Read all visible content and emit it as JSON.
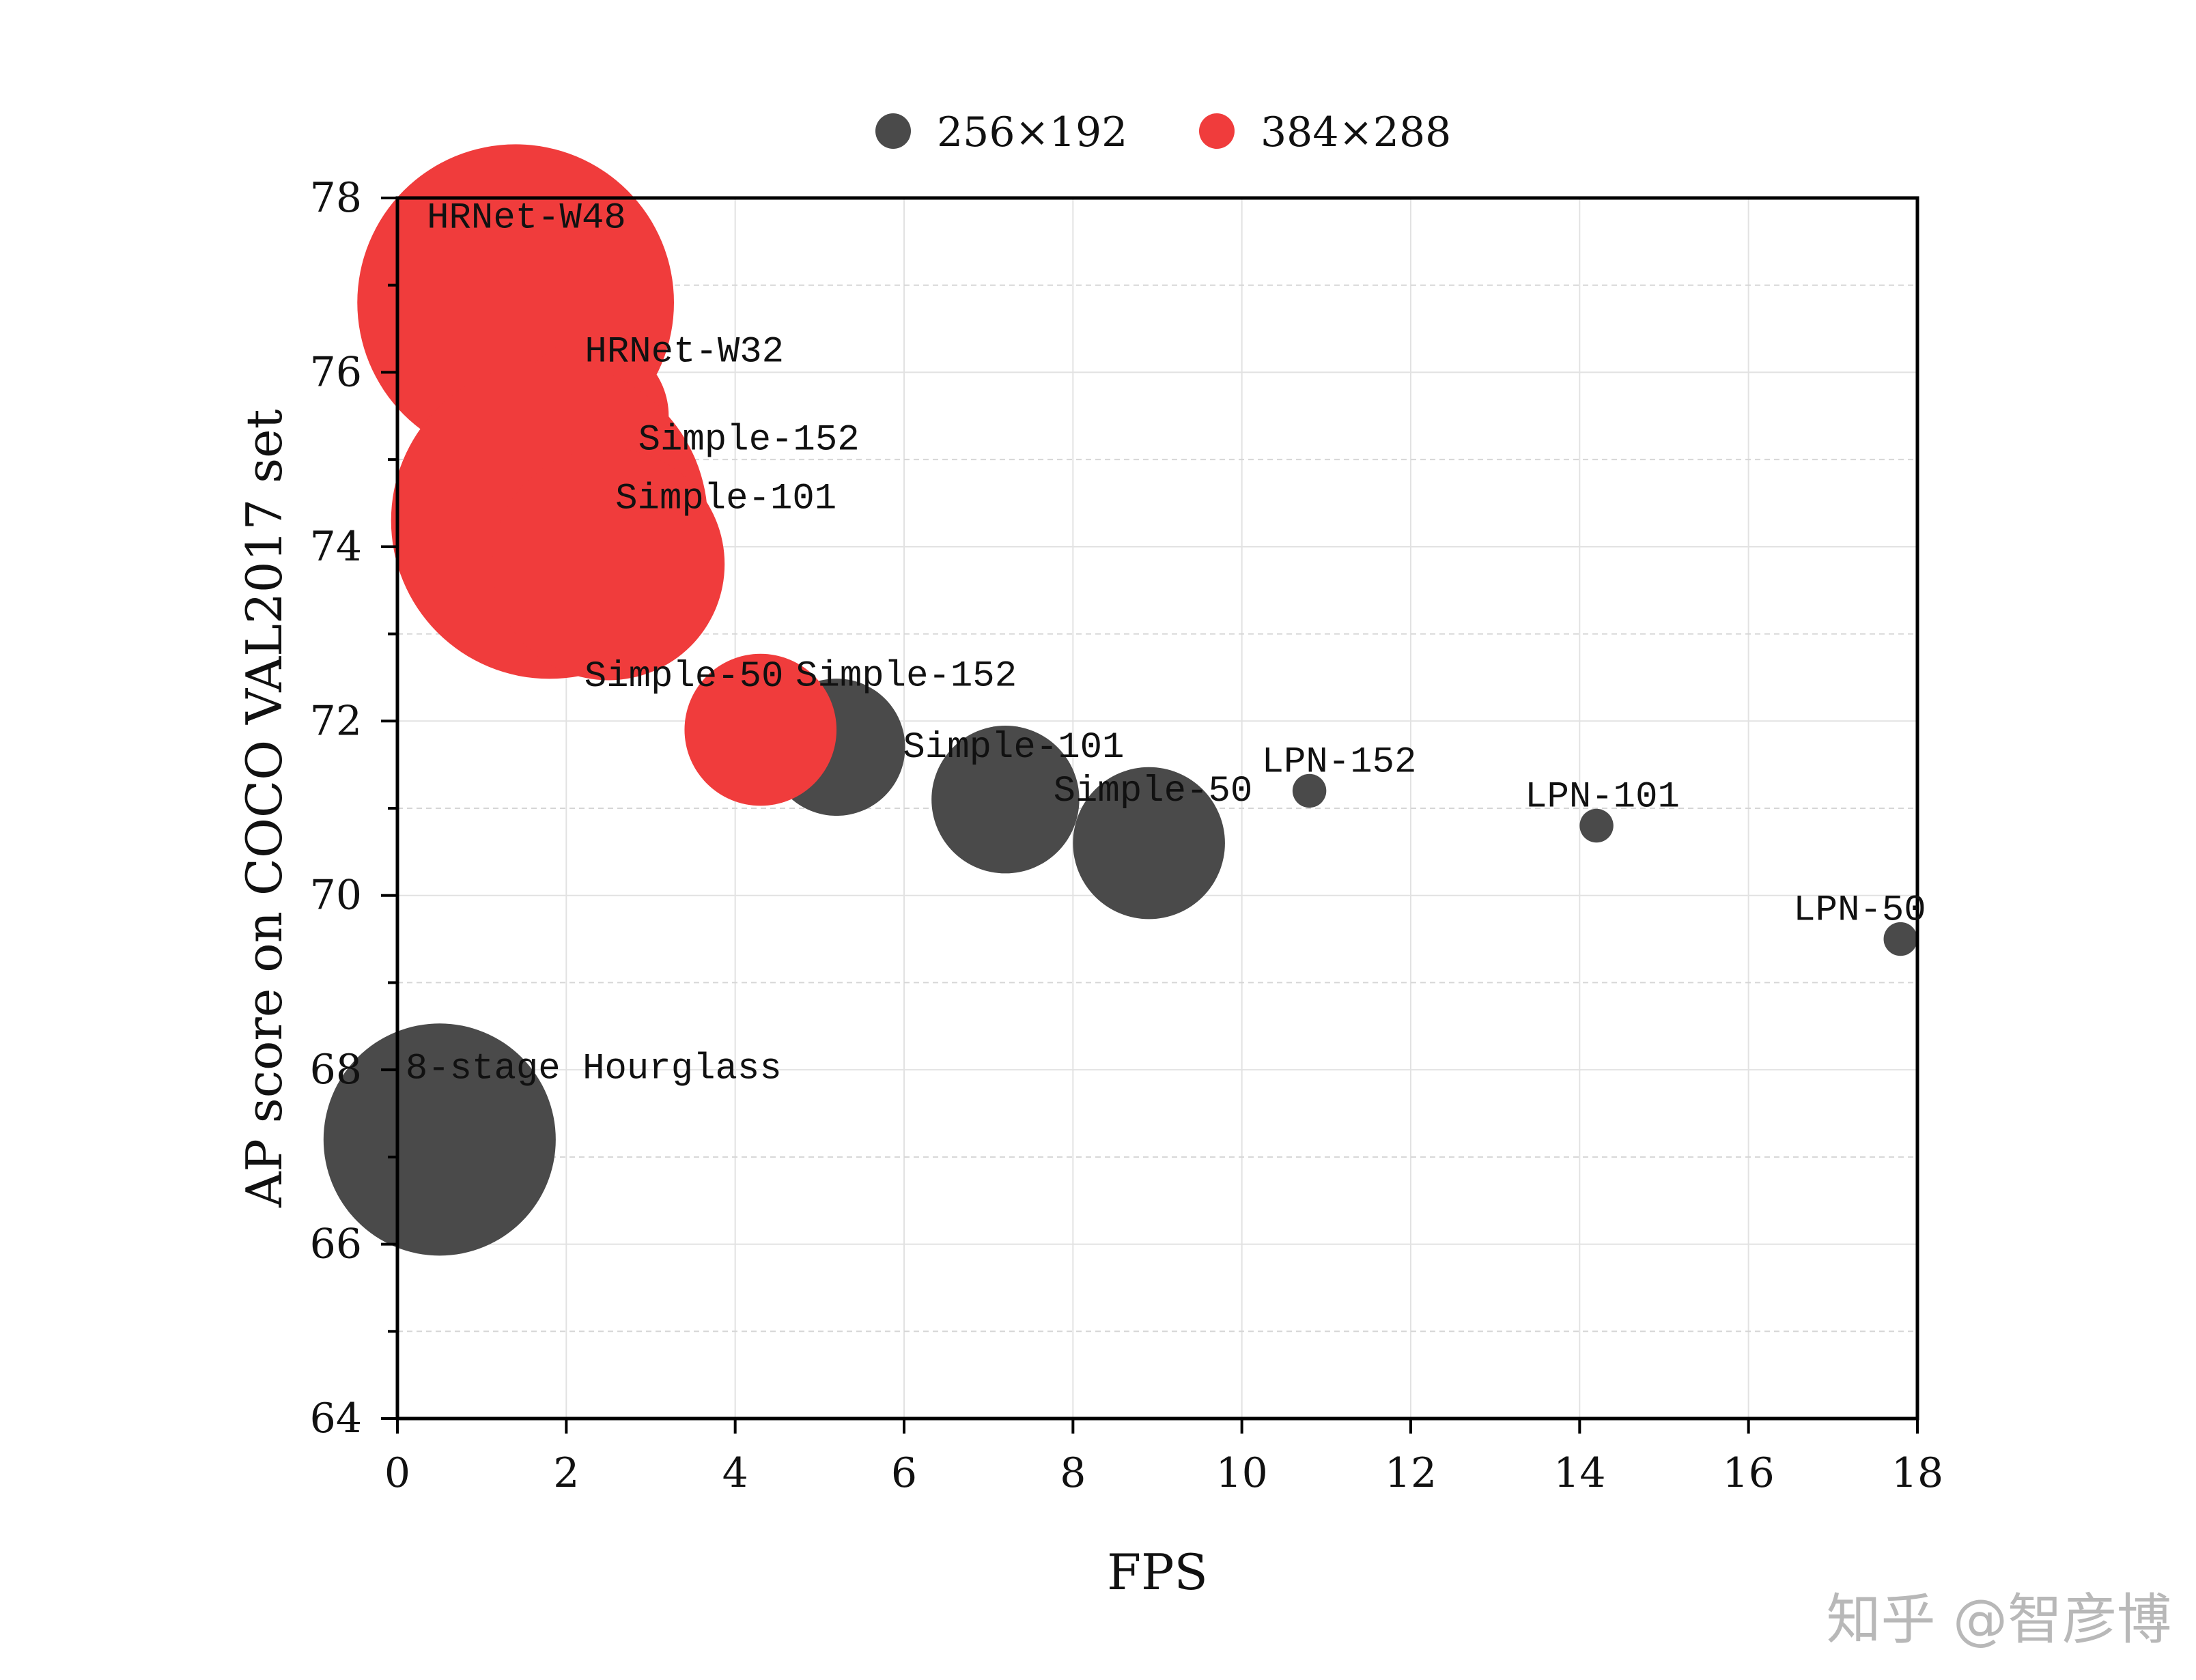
{
  "chart_data": {
    "type": "scatter",
    "subtype": "bubble",
    "xlabel": "FPS",
    "ylabel": "AP score on COCO VAL2017 set",
    "xlim": [
      0,
      18
    ],
    "ylim": [
      64,
      78
    ],
    "xticks": [
      0,
      2,
      4,
      6,
      8,
      10,
      12,
      14,
      16,
      18
    ],
    "yticks": [
      64,
      66,
      68,
      70,
      72,
      74,
      76,
      78
    ],
    "grid": true,
    "legend_position": "top",
    "series": [
      {
        "name": "256×192",
        "color": "#4a4a4a",
        "points": [
          {
            "label": "8-stage Hourglass",
            "x": 0.5,
            "y": 67.2,
            "size": 11
          },
          {
            "label": "Simple-152",
            "x": 5.2,
            "y": 71.7,
            "size": 6.5
          },
          {
            "label": "Simple-101",
            "x": 7.2,
            "y": 71.1,
            "size": 7
          },
          {
            "label": "Simple-50",
            "x": 8.9,
            "y": 70.6,
            "size": 7.2
          },
          {
            "label": "LPN-152",
            "x": 10.8,
            "y": 71.2,
            "size": 1.6
          },
          {
            "label": "LPN-101",
            "x": 14.2,
            "y": 70.8,
            "size": 1.6
          },
          {
            "label": "LPN-50",
            "x": 17.8,
            "y": 69.5,
            "size": 1.6
          }
        ]
      },
      {
        "name": "384×288",
        "color": "#f03c3c",
        "points": [
          {
            "label": "HRNet-W48",
            "x": 1.4,
            "y": 76.8,
            "size": 15
          },
          {
            "label": "HRNet-W32",
            "x": 2.3,
            "y": 75.5,
            "size": 7.3
          },
          {
            "label": "Simple-152",
            "x": 1.8,
            "y": 74.3,
            "size": 15
          },
          {
            "label": "Simple-101",
            "x": 2.5,
            "y": 73.8,
            "size": 11
          },
          {
            "label": "Simple-50",
            "x": 4.3,
            "y": 71.9,
            "size": 7.2
          }
        ]
      }
    ]
  },
  "watermark": "知乎 @智彦博"
}
